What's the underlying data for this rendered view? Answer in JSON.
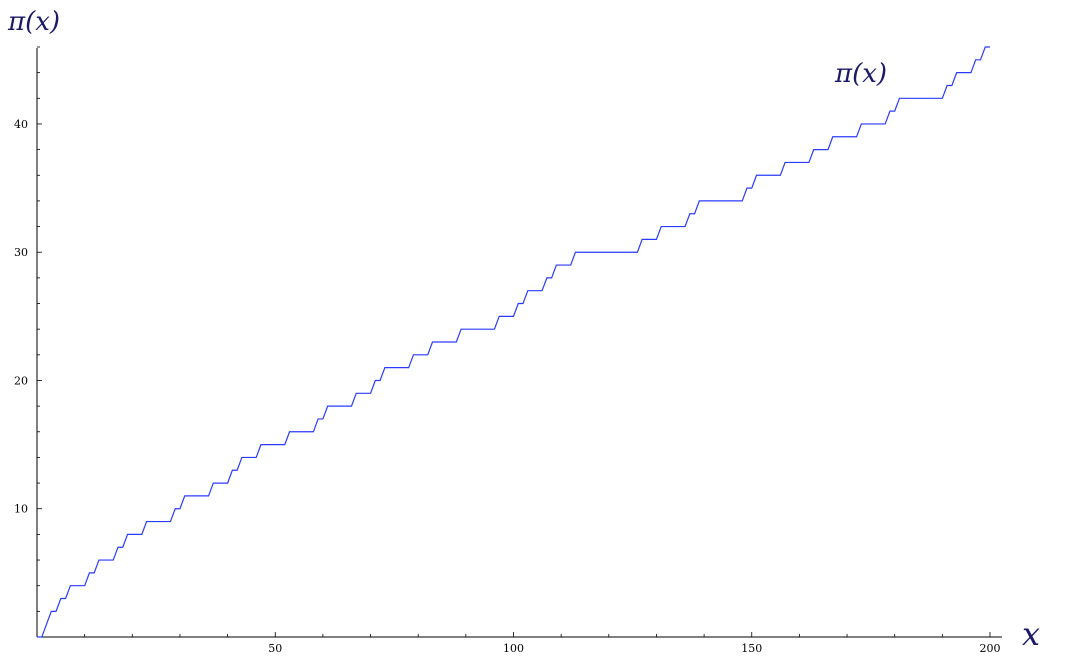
{
  "chart_data": {
    "type": "line",
    "title": "",
    "xlabel": "x",
    "ylabel": "π(x)",
    "series_label": "π(x)",
    "xlim": [
      0,
      200
    ],
    "ylim": [
      0,
      46
    ],
    "xticks": [
      50,
      100,
      150,
      200
    ],
    "xtick_labels": [
      "50",
      "100",
      "150",
      "200"
    ],
    "yticks": [
      10,
      20,
      30,
      40
    ],
    "ytick_labels": [
      "10",
      "20",
      "30",
      "40"
    ],
    "grid": false,
    "legend": "none",
    "line_color": "#2a3bff",
    "series": [
      {
        "step": true,
        "x": [
          2,
          3,
          5,
          7,
          11,
          13,
          17,
          19,
          23,
          29,
          31,
          37,
          41,
          43,
          47,
          53,
          59,
          61,
          67,
          71,
          73,
          79,
          83,
          89,
          97,
          101,
          103,
          107,
          109,
          113,
          127,
          131,
          137,
          139,
          149,
          151,
          157,
          163,
          167,
          173,
          179,
          181,
          191,
          193,
          197,
          199
        ],
        "values": [
          1,
          2,
          3,
          4,
          5,
          6,
          7,
          8,
          9,
          10,
          11,
          12,
          13,
          14,
          15,
          16,
          17,
          18,
          19,
          20,
          21,
          22,
          23,
          24,
          25,
          26,
          27,
          28,
          29,
          30,
          31,
          32,
          33,
          34,
          35,
          36,
          37,
          38,
          39,
          40,
          41,
          42,
          43,
          44,
          45,
          46
        ]
      }
    ]
  }
}
